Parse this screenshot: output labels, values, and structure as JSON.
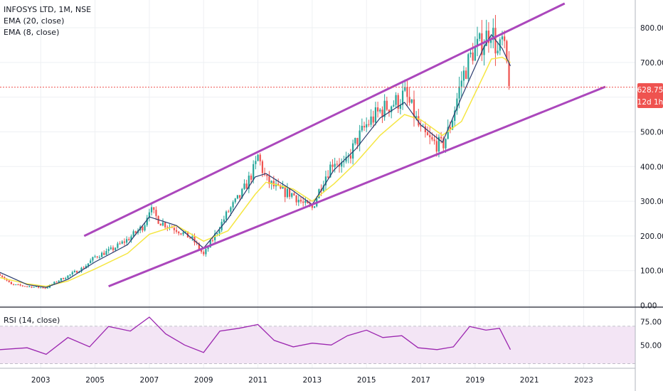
{
  "legend": {
    "title": "INFOSYS LTD, 1M, NSE",
    "ema20": "EMA (20, close)",
    "ema8": "EMA (8, close)"
  },
  "rsi_legend": "RSI (14, close)",
  "price_tag": {
    "value": "628.75",
    "countdown": "12d 1h"
  },
  "colors": {
    "up": "#26a69a",
    "down": "#ef5350",
    "ema20": "#f5e642",
    "ema8": "#2a3b6e",
    "channel": "#ab47bc",
    "rsi": "#9c27b0",
    "rsi_band": "#f3e5f5",
    "price_line": "#ef5350"
  },
  "chart_data": [
    {
      "type": "candlestick",
      "title": "INFOSYS LTD, 1M, NSE",
      "y_ticks": [
        "0.00",
        "100.00",
        "200.00",
        "300.00",
        "400.00",
        "500.00",
        "600.00",
        "700.00",
        "800.00"
      ],
      "x_ticks": [
        "2003",
        "2005",
        "2007",
        "2009",
        "2011",
        "2013",
        "2015",
        "2017",
        "2019",
        "2021",
        "2023"
      ],
      "ylim": [
        -5,
        880
      ],
      "xlim": [
        2001.5,
        2024.9
      ],
      "last_price": 628.75,
      "price_path": [
        [
          2001.5,
          90
        ],
        [
          2001.9,
          60
        ],
        [
          2002.5,
          55
        ],
        [
          2003.2,
          50
        ],
        [
          2003.6,
          70
        ],
        [
          2004.0,
          85
        ],
        [
          2004.6,
          110
        ],
        [
          2005.0,
          140
        ],
        [
          2005.6,
          160
        ],
        [
          2006.2,
          190
        ],
        [
          2006.8,
          230
        ],
        [
          2007.0,
          280
        ],
        [
          2007.4,
          240
        ],
        [
          2008.0,
          220
        ],
        [
          2008.6,
          190
        ],
        [
          2009.0,
          145
        ],
        [
          2009.4,
          200
        ],
        [
          2009.9,
          270
        ],
        [
          2010.4,
          320
        ],
        [
          2010.9,
          400
        ],
        [
          2011.0,
          430
        ],
        [
          2011.3,
          360
        ],
        [
          2011.8,
          330
        ],
        [
          2012.3,
          320
        ],
        [
          2012.7,
          290
        ],
        [
          2013.0,
          280
        ],
        [
          2013.4,
          360
        ],
        [
          2013.8,
          420
        ],
        [
          2014.2,
          400
        ],
        [
          2014.6,
          470
        ],
        [
          2015.0,
          520
        ],
        [
          2015.5,
          560
        ],
        [
          2015.9,
          580
        ],
        [
          2016.2,
          590
        ],
        [
          2016.4,
          610
        ],
        [
          2016.7,
          560
        ],
        [
          2017.0,
          500
        ],
        [
          2017.4,
          470
        ],
        [
          2017.8,
          460
        ],
        [
          2018.1,
          520
        ],
        [
          2018.5,
          650
        ],
        [
          2018.9,
          730
        ],
        [
          2019.3,
          760
        ],
        [
          2019.6,
          800
        ],
        [
          2019.85,
          720
        ],
        [
          2020.0,
          760
        ],
        [
          2020.15,
          700
        ],
        [
          2020.3,
          628.75
        ]
      ],
      "ema_8_path": [
        [
          2001.5,
          95
        ],
        [
          2002.5,
          60
        ],
        [
          2003.2,
          52
        ],
        [
          2004.0,
          75
        ],
        [
          2005.0,
          125
        ],
        [
          2006.2,
          175
        ],
        [
          2007.0,
          255
        ],
        [
          2008.0,
          230
        ],
        [
          2009.0,
          165
        ],
        [
          2009.9,
          250
        ],
        [
          2010.9,
          370
        ],
        [
          2011.3,
          380
        ],
        [
          2012.3,
          330
        ],
        [
          2013.0,
          290
        ],
        [
          2013.8,
          390
        ],
        [
          2014.6,
          450
        ],
        [
          2015.5,
          540
        ],
        [
          2016.4,
          585
        ],
        [
          2017.0,
          520
        ],
        [
          2017.8,
          470
        ],
        [
          2018.5,
          600
        ],
        [
          2019.3,
          740
        ],
        [
          2019.6,
          780
        ],
        [
          2020.0,
          740
        ],
        [
          2020.3,
          690
        ]
      ],
      "ema_20_path": [
        [
          2001.5,
          80
        ],
        [
          2002.5,
          62
        ],
        [
          2003.2,
          55
        ],
        [
          2004.0,
          70
        ],
        [
          2005.0,
          105
        ],
        [
          2006.2,
          150
        ],
        [
          2007.0,
          205
        ],
        [
          2008.0,
          230
        ],
        [
          2009.0,
          185
        ],
        [
          2009.9,
          215
        ],
        [
          2010.9,
          320
        ],
        [
          2011.3,
          355
        ],
        [
          2012.3,
          335
        ],
        [
          2013.0,
          300
        ],
        [
          2013.8,
          350
        ],
        [
          2014.6,
          410
        ],
        [
          2015.5,
          490
        ],
        [
          2016.4,
          550
        ],
        [
          2017.0,
          535
        ],
        [
          2017.8,
          490
        ],
        [
          2018.5,
          530
        ],
        [
          2019.3,
          660
        ],
        [
          2019.6,
          710
        ],
        [
          2020.0,
          715
        ],
        [
          2020.3,
          700
        ]
      ],
      "channel_upper": [
        [
          2004.6,
          200
        ],
        [
          2022.3,
          870
        ]
      ],
      "channel_lower": [
        [
          2005.5,
          55
        ],
        [
          2023.8,
          630
        ]
      ]
    },
    {
      "type": "line",
      "name": "RSI (14, close)",
      "y_ticks": [
        "50.00",
        "75.00"
      ],
      "ylim": [
        25,
        90
      ],
      "band": [
        30,
        70
      ],
      "x": [
        2001.5,
        2002.5,
        2003.2,
        2004.0,
        2004.8,
        2005.5,
        2006.3,
        2007.0,
        2007.6,
        2008.3,
        2009.0,
        2009.6,
        2010.3,
        2011.0,
        2011.6,
        2012.3,
        2013.0,
        2013.7,
        2014.3,
        2015.0,
        2015.6,
        2016.3,
        2016.9,
        2017.6,
        2018.2,
        2018.8,
        2019.4,
        2019.9,
        2020.3
      ],
      "y": [
        45,
        47,
        40,
        58,
        48,
        70,
        65,
        80,
        62,
        50,
        42,
        65,
        68,
        72,
        55,
        48,
        52,
        50,
        60,
        66,
        58,
        60,
        47,
        45,
        48,
        70,
        66,
        68,
        45
      ]
    }
  ]
}
